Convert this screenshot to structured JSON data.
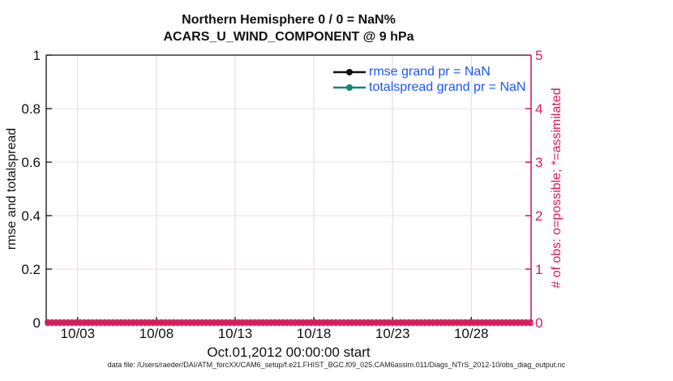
{
  "title": {
    "line1": "Northern Hemisphere 0 / 0 = NaN%",
    "line2": "ACARS_U_WIND_COMPONENT @ 9 hPa"
  },
  "axes": {
    "left": {
      "label": "rmse and totalspread",
      "tick_labels": [
        "0",
        "0.2",
        "0.4",
        "0.6",
        "0.8",
        "1"
      ],
      "tick_values": [
        0,
        0.2,
        0.4,
        0.6,
        0.8,
        1
      ],
      "range": [
        0,
        1
      ]
    },
    "right": {
      "label": "# of obs: o=possible; *=assimilated",
      "tick_labels": [
        "0",
        "1",
        "2",
        "3",
        "4",
        "5"
      ],
      "tick_values": [
        0,
        1,
        2,
        3,
        4,
        5
      ],
      "range": [
        0,
        5
      ]
    },
    "x": {
      "label": "Oct.01,2012 00:00:00 start",
      "tick_labels": [
        "10/03",
        "10/08",
        "10/13",
        "10/18",
        "10/23",
        "10/28"
      ],
      "tick_days": [
        2,
        7,
        12,
        17,
        22,
        27
      ],
      "range_days": [
        0,
        30.8
      ]
    }
  },
  "legend": {
    "items": [
      {
        "label": "rmse grand pr = NaN",
        "line_color": "#111111"
      },
      {
        "label": "totalspread grand pr = NaN",
        "line_color": "#148578"
      }
    ]
  },
  "footer": "data file: /Users/raeder/DAI/ATM_forcXX/CAM6_setup/f.e21.FHIST_BGC.f09_025.CAM6assim.011/Diags_NTrS_2012-10/obs_diag_output.nc",
  "colors": {
    "crimson_right_axis": "#d91c5c",
    "grid_pink": "#f6d7e3",
    "grid_gray": "#dbdbdb",
    "teal": "#148578",
    "legend_text_blue": "#1b57f7",
    "axis_black": "#111111"
  },
  "chart_data": {
    "type": "line",
    "title": "Northern Hemisphere 0 / 0 = NaN% — ACARS_U_WIND_COMPONENT @ 9 hPa",
    "xlabel": "Oct.01,2012 00:00:00 start",
    "ylabel_left": "rmse and totalspread",
    "ylabel_right": "# of obs: o=possible; *=assimilated",
    "ylim_left": [
      0,
      1
    ],
    "ylim_right": [
      0,
      5
    ],
    "x_range_days_from_start": [
      0,
      30.8
    ],
    "x_tick_labels": [
      "10/03",
      "10/08",
      "10/13",
      "10/18",
      "10/23",
      "10/28"
    ],
    "x_tick_days": [
      2,
      7,
      12,
      17,
      22,
      27
    ],
    "grid": true,
    "legend_position": "upper-right-inside",
    "series": [
      {
        "name": "rmse grand pr = NaN",
        "axis": "left",
        "values": "NaN (no curve plotted)"
      },
      {
        "name": "totalspread grand pr = NaN",
        "axis": "left",
        "values": "NaN (no curve plotted)"
      },
      {
        "name": "possible obs count (o marker)",
        "axis": "right",
        "marker": "o",
        "n_time_bins": 120,
        "constant_value": 0
      },
      {
        "name": "assimilated obs count (* marker)",
        "axis": "right",
        "marker": "*",
        "n_time_bins": 120,
        "constant_value": 0
      }
    ]
  }
}
